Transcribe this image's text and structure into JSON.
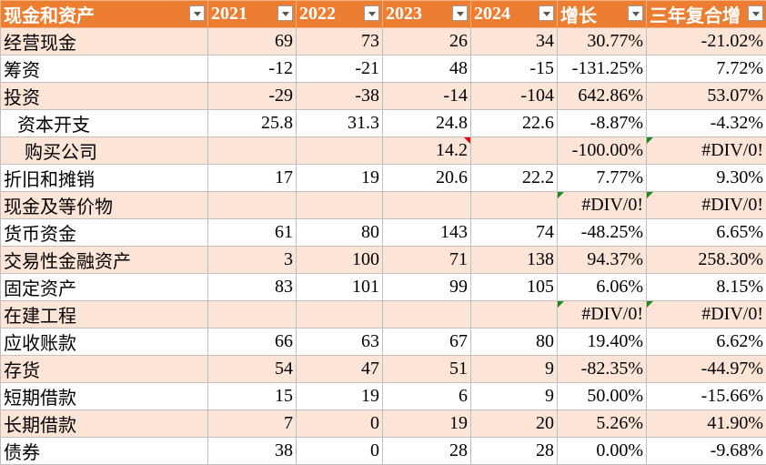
{
  "table": {
    "header": [
      "现金和资产",
      "2021",
      "2022",
      "2023",
      "2024",
      "增长",
      "三年复合增"
    ],
    "rows": [
      [
        "经营现金",
        "69",
        "73",
        "26",
        "34",
        "30.77%",
        "-21.02%"
      ],
      [
        "筹资",
        "-12",
        "-21",
        "48",
        "-15",
        "-131.25%",
        "7.72%"
      ],
      [
        "投资",
        "-29",
        "-38",
        "-14",
        "-104",
        "642.86%",
        "53.07%"
      ],
      [
        "资本开支",
        "25.8",
        "31.3",
        "24.8",
        "22.6",
        "-8.87%",
        "-4.32%"
      ],
      [
        "购买公司",
        null,
        null,
        "14.2",
        null,
        "-100.00%",
        "#DIV/0!"
      ],
      [
        "折旧和摊销",
        "17",
        "19",
        "20.6",
        "22.2",
        "7.77%",
        "9.30%"
      ],
      [
        "现金及等价物",
        null,
        null,
        null,
        null,
        "#DIV/0!",
        "#DIV/0!"
      ],
      [
        "货币资金",
        "61",
        "80",
        "143",
        "74",
        "-48.25%",
        "6.65%"
      ],
      [
        "交易性金融资产",
        "3",
        "100",
        "71",
        "138",
        "94.37%",
        "258.30%"
      ],
      [
        "固定资产",
        "83",
        "101",
        "99",
        "105",
        "6.06%",
        "8.15%"
      ],
      [
        "在建工程",
        null,
        null,
        null,
        null,
        "#DIV/0!",
        "#DIV/0!"
      ],
      [
        "应收账款",
        "66",
        "63",
        "67",
        "80",
        "19.40%",
        "6.62%"
      ],
      [
        "存货",
        "54",
        "47",
        "51",
        "9",
        "-82.35%",
        "-44.97%"
      ],
      [
        "短期借款",
        "15",
        "19",
        "6",
        "9",
        "50.00%",
        "-15.66%"
      ],
      [
        "长期借款",
        "7",
        "0",
        "19",
        "20",
        "5.26%",
        "41.90%"
      ],
      [
        "债券",
        "38",
        "0",
        "28",
        "28",
        "0.00%",
        "-9.68%"
      ]
    ]
  }
}
